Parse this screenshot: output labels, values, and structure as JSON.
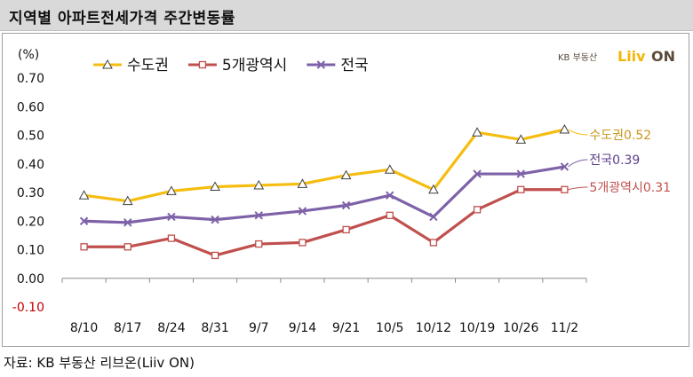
{
  "header": {
    "title": "지역별 아파트전세가격 주간변동률"
  },
  "footer": {
    "source": "자료: KB 부동산  리브온(Liiv ON)"
  },
  "logo": {
    "kb_text": "KB 부동산",
    "liiv_text": "Liiv",
    "on_text": "ON",
    "accent_color": "#f2b705",
    "dark_color": "#5b4a3a"
  },
  "chart_data": {
    "type": "line",
    "unit_label": "(%)",
    "categories": [
      "8/10",
      "8/17",
      "8/24",
      "8/31",
      "9/7",
      "9/14",
      "9/21",
      "10/5",
      "10/12",
      "10/19",
      "10/26",
      "11/2"
    ],
    "ylim": [
      -0.1,
      0.7
    ],
    "yticks": [
      0.7,
      0.6,
      0.5,
      0.4,
      0.3,
      0.2,
      0.1,
      0.0,
      -0.1
    ],
    "ytick_labels": [
      "0.70",
      "0.60",
      "0.50",
      "0.40",
      "0.30",
      "0.20",
      "0.10",
      "0.00",
      "-0.10"
    ],
    "grid": false,
    "legend_position": "top-left",
    "series": [
      {
        "name": "수도권",
        "color": "#f5bd0f",
        "marker": "triangle",
        "values": [
          0.29,
          0.27,
          0.305,
          0.32,
          0.325,
          0.33,
          0.36,
          0.38,
          0.31,
          0.51,
          0.485,
          0.52
        ],
        "end_label": "수도권0.52",
        "end_label_color": "#c9961a"
      },
      {
        "name": "5개광역시",
        "color": "#c0504d",
        "marker": "square",
        "values": [
          0.11,
          0.11,
          0.14,
          0.08,
          0.12,
          0.125,
          0.17,
          0.22,
          0.125,
          0.24,
          0.31,
          0.31
        ],
        "end_label": "5개광역시0.31",
        "end_label_color": "#c0504d"
      },
      {
        "name": "전국",
        "color": "#7e62a8",
        "marker": "x",
        "values": [
          0.2,
          0.195,
          0.215,
          0.205,
          0.22,
          0.235,
          0.255,
          0.29,
          0.215,
          0.365,
          0.365,
          0.39
        ],
        "end_label": "전국0.39",
        "end_label_color": "#5b3f8a"
      }
    ]
  }
}
